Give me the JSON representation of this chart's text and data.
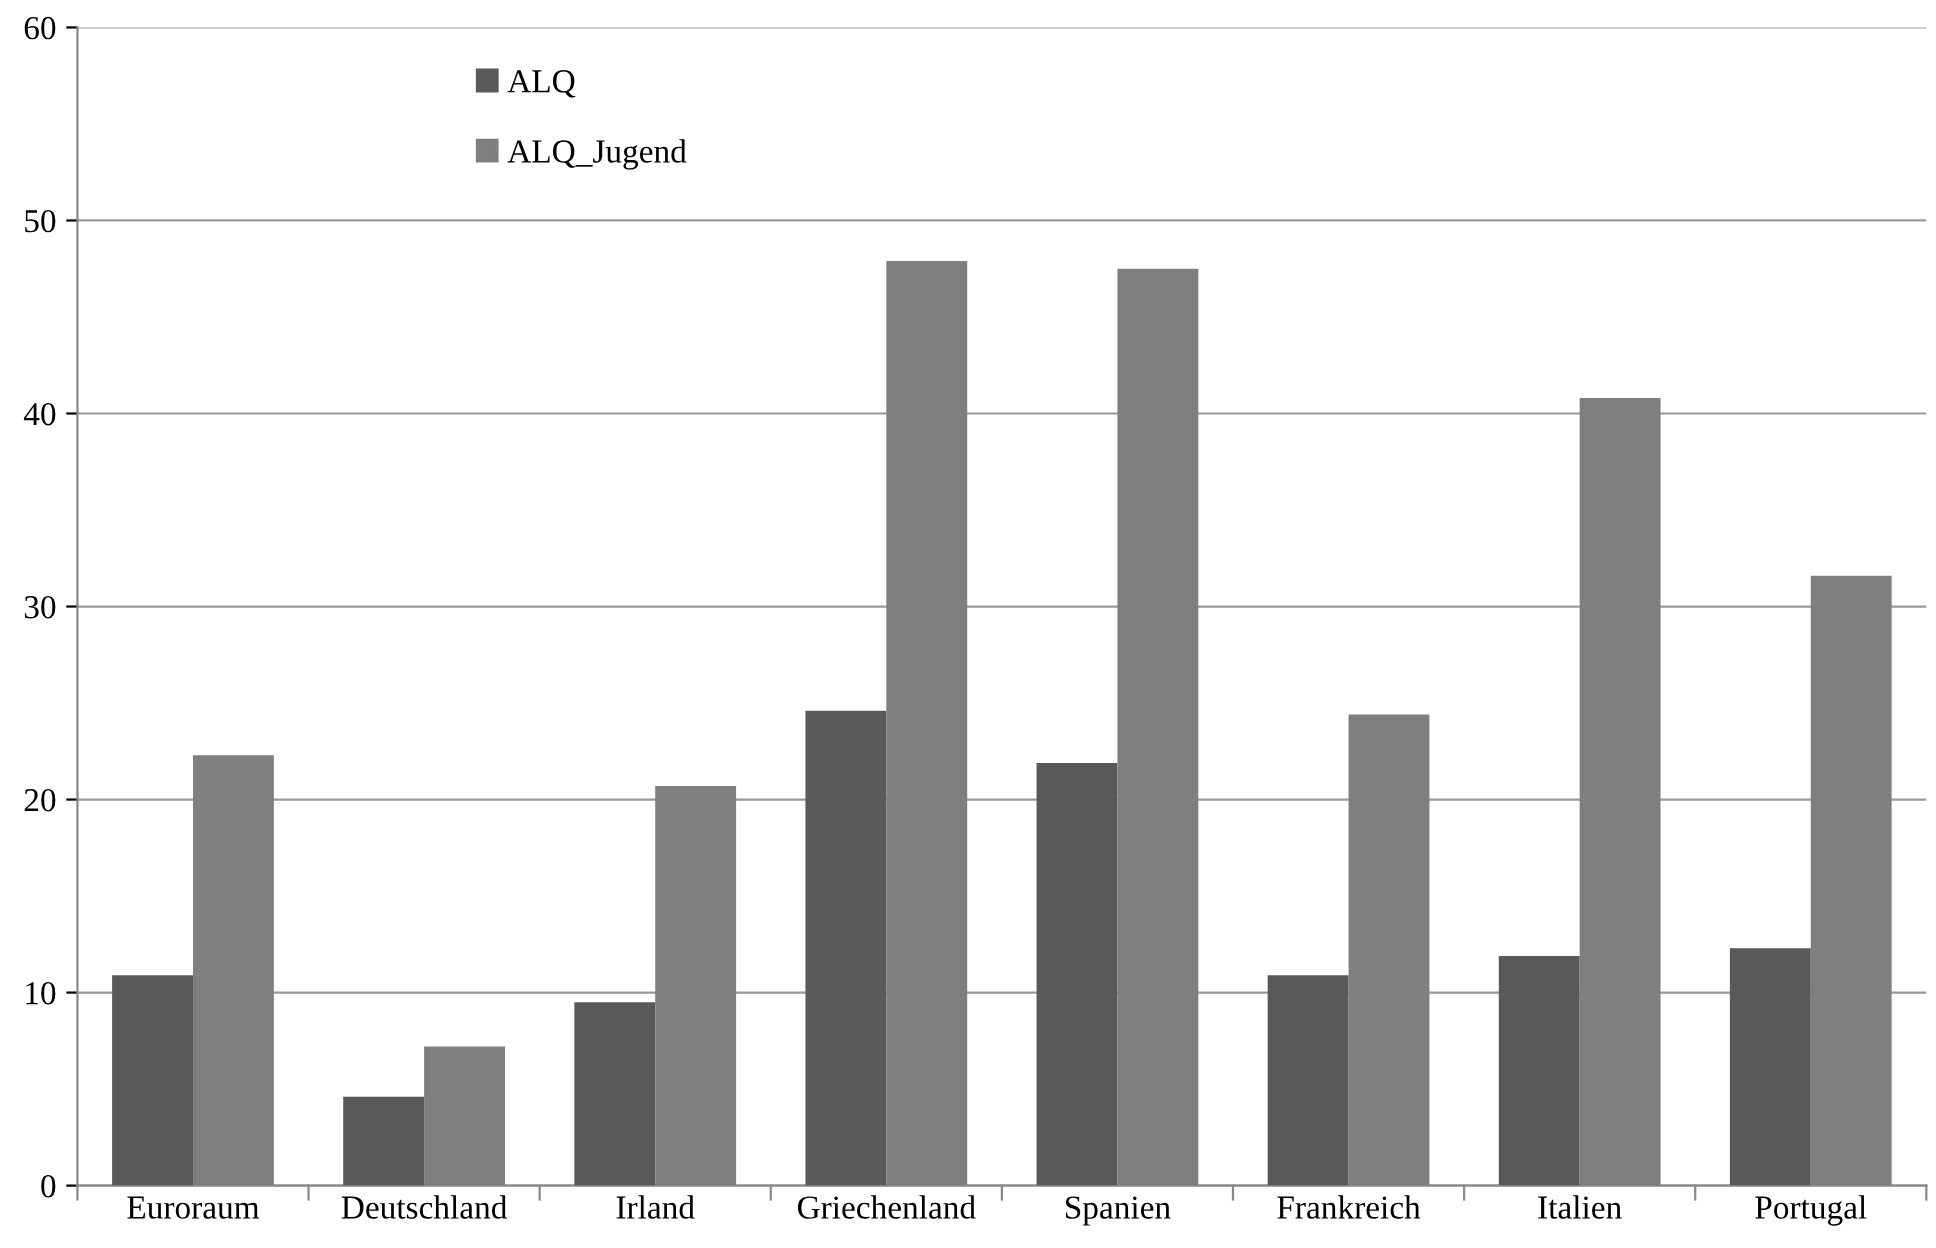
{
  "chart_data": {
    "type": "bar",
    "categories": [
      "Euroraum",
      "Deutschland",
      "Irland",
      "Griechenland",
      "Spanien",
      "Frankreich",
      "Italien",
      "Portugal"
    ],
    "series": [
      {
        "name": "ALQ",
        "color": "#595959",
        "values": [
          10.9,
          4.6,
          9.5,
          24.6,
          21.9,
          10.9,
          11.9,
          12.3
        ]
      },
      {
        "name": "ALQ_Jugend",
        "color": "#7f7f7f",
        "values": [
          22.3,
          7.2,
          20.7,
          47.9,
          47.5,
          24.4,
          40.8,
          31.6
        ]
      }
    ],
    "ylim": [
      0,
      60
    ],
    "yticks": [
      0,
      10,
      20,
      30,
      40,
      50,
      60
    ],
    "grid": "y",
    "legend": "top left"
  }
}
